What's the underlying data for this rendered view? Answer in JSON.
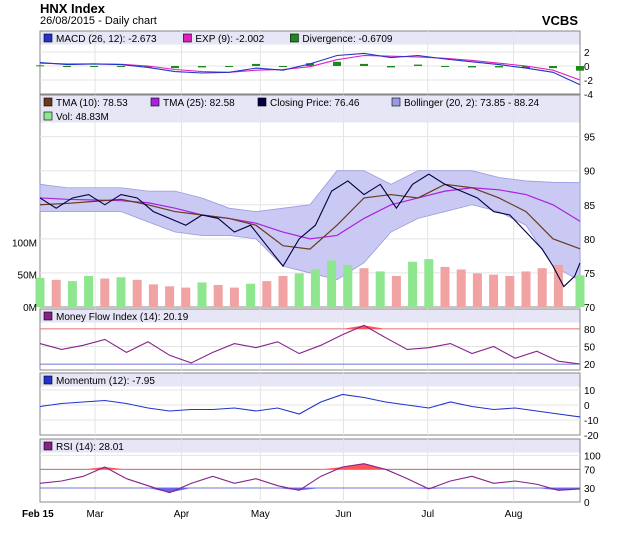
{
  "header": {
    "title": "HNX Index",
    "subtitle": "26/08/2015 - Daily chart",
    "brand": "VCBS"
  },
  "x_axis": {
    "ticks": [
      {
        "label": "Feb 15",
        "pos": 0.0
      },
      {
        "label": "Mar",
        "pos": 0.102
      },
      {
        "label": "Apr",
        "pos": 0.262
      },
      {
        "label": "May",
        "pos": 0.408
      },
      {
        "label": "Jun",
        "pos": 0.562
      },
      {
        "label": "Jul",
        "pos": 0.718
      },
      {
        "label": "Aug",
        "pos": 0.877
      }
    ]
  },
  "colors": {
    "price": "#000040",
    "tma10": "#6b3a1e",
    "tma25": "#aa22dd",
    "bollinger_fill": "#c9c9f4",
    "bollinger_edge": "#9a9ae0",
    "vol_up": "#8ee68e",
    "vol_down": "#f1a2a2",
    "macd": "#2233cc",
    "exp": "#dd22bb",
    "diverg": "#1e8a1e",
    "mfi": "#882288",
    "momentum": "#2233cc",
    "rsi": "#882288",
    "fill_red": "#ff5555",
    "fill_blue": "#6666ee",
    "band": "#e6e6f6"
  },
  "chart_data": [
    {
      "type": "line",
      "title": "MACD",
      "legend": [
        {
          "label": "MACD (26, 12): -2.673",
          "color": "#2233cc"
        },
        {
          "label": "EXP (9): -2.002",
          "color": "#dd22bb"
        },
        {
          "label": "Divergence: -0.6709",
          "color": "#1e8a1e"
        }
      ],
      "ylim": [
        -4,
        3
      ],
      "yticks": [
        "2",
        "0",
        "-2",
        "-4"
      ],
      "ytick_values": [
        2,
        0,
        -2,
        -4
      ],
      "series": [
        {
          "name": "MACD (26, 12)",
          "x": [
            0,
            0.05,
            0.1,
            0.15,
            0.2,
            0.25,
            0.3,
            0.35,
            0.4,
            0.45,
            0.5,
            0.55,
            0.6,
            0.65,
            0.7,
            0.75,
            0.8,
            0.85,
            0.9,
            0.95,
            1.0
          ],
          "values": [
            0.5,
            0.2,
            0.3,
            0.2,
            -0.2,
            -0.8,
            -1.0,
            -0.9,
            -0.3,
            -0.6,
            0.3,
            1.5,
            1.8,
            1.2,
            1.5,
            1.0,
            0.6,
            0.2,
            -0.3,
            -0.9,
            -2.673
          ]
        },
        {
          "name": "EXP (9)",
          "x": [
            0,
            0.05,
            0.1,
            0.15,
            0.2,
            0.25,
            0.3,
            0.35,
            0.4,
            0.45,
            0.5,
            0.55,
            0.6,
            0.65,
            0.7,
            0.75,
            0.8,
            0.85,
            0.9,
            0.95,
            1.0
          ],
          "values": [
            0.4,
            0.3,
            0.3,
            0.25,
            0.0,
            -0.5,
            -0.8,
            -0.9,
            -0.6,
            -0.5,
            -0.1,
            0.9,
            1.5,
            1.4,
            1.3,
            1.1,
            0.8,
            0.4,
            0.0,
            -0.6,
            -2.002
          ]
        },
        {
          "name": "Divergence",
          "type": "bar",
          "x": [
            0,
            0.05,
            0.1,
            0.15,
            0.2,
            0.25,
            0.3,
            0.35,
            0.4,
            0.45,
            0.5,
            0.55,
            0.6,
            0.65,
            0.7,
            0.75,
            0.8,
            0.85,
            0.9,
            0.95,
            1.0
          ],
          "values": [
            0.1,
            -0.1,
            0.0,
            -0.05,
            -0.2,
            -0.3,
            -0.2,
            0.0,
            0.3,
            -0.1,
            0.4,
            0.6,
            0.3,
            -0.2,
            0.2,
            -0.1,
            -0.2,
            -0.2,
            -0.3,
            -0.3,
            -0.67
          ]
        }
      ]
    },
    {
      "type": "line",
      "title": "Price",
      "legend": [
        {
          "label": "TMA (10): 78.53",
          "color": "#6b3a1e"
        },
        {
          "label": "TMA (25): 82.58",
          "color": "#aa22dd"
        },
        {
          "label": "Closing Price: 76.46",
          "color": "#000040"
        },
        {
          "label": "Bollinger (20, 2): 73.85 - 88.24",
          "color": "#9a9ae0"
        },
        {
          "label": "Vol: 48.83M",
          "color": "#8ee68e"
        }
      ],
      "ylim": [
        70,
        97
      ],
      "yticks": [
        "95",
        "90",
        "85",
        "80",
        "75",
        "70"
      ],
      "ytick_values": [
        95,
        90,
        85,
        80,
        75,
        70
      ],
      "volume_ylim": [
        0,
        150
      ],
      "volume_ticks": [
        "100M",
        "50M",
        "0M"
      ],
      "volume_tick_values": [
        100,
        50,
        0
      ],
      "series": [
        {
          "name": "Closing Price",
          "x": [
            0,
            0.03,
            0.06,
            0.09,
            0.12,
            0.15,
            0.18,
            0.21,
            0.24,
            0.27,
            0.3,
            0.33,
            0.36,
            0.39,
            0.42,
            0.45,
            0.48,
            0.51,
            0.54,
            0.57,
            0.6,
            0.63,
            0.66,
            0.69,
            0.72,
            0.75,
            0.78,
            0.81,
            0.84,
            0.87,
            0.9,
            0.93,
            0.95,
            0.97,
            0.99,
            1.0
          ],
          "values": [
            86,
            84.5,
            86,
            86.5,
            85,
            86.5,
            86,
            84,
            83,
            82,
            83.5,
            83,
            81,
            82,
            79,
            76,
            80,
            82,
            87,
            88.5,
            86.5,
            88,
            84.5,
            88,
            89.5,
            88,
            87,
            86,
            84,
            83.5,
            81,
            78.5,
            76,
            73,
            74.5,
            76.46
          ]
        },
        {
          "name": "TMA (10)",
          "x": [
            0,
            0.05,
            0.1,
            0.15,
            0.2,
            0.25,
            0.3,
            0.35,
            0.4,
            0.45,
            0.5,
            0.55,
            0.6,
            0.65,
            0.7,
            0.75,
            0.8,
            0.85,
            0.9,
            0.95,
            1.0
          ],
          "values": [
            85,
            85.2,
            85.5,
            85.8,
            85,
            84,
            83.5,
            83,
            82,
            79,
            78.5,
            82,
            86,
            86.5,
            86,
            88,
            87.5,
            86,
            84,
            80,
            78.53
          ]
        },
        {
          "name": "TMA (25)",
          "x": [
            0,
            0.05,
            0.1,
            0.15,
            0.2,
            0.25,
            0.3,
            0.35,
            0.4,
            0.45,
            0.5,
            0.55,
            0.6,
            0.65,
            0.7,
            0.75,
            0.8,
            0.85,
            0.9,
            0.95,
            1.0
          ],
          "values": [
            86,
            85.8,
            85.7,
            85.6,
            85.3,
            84.5,
            83.5,
            83,
            82.3,
            81,
            80,
            80.5,
            83,
            85,
            86,
            87,
            87.5,
            87.2,
            86.5,
            85,
            82.58
          ]
        },
        {
          "name": "Bollinger upper",
          "x": [
            0,
            0.05,
            0.1,
            0.15,
            0.2,
            0.25,
            0.3,
            0.35,
            0.4,
            0.45,
            0.5,
            0.55,
            0.6,
            0.65,
            0.7,
            0.75,
            0.8,
            0.85,
            0.9,
            0.95,
            1.0
          ],
          "values": [
            88,
            87.5,
            87.5,
            87.5,
            87,
            87,
            86,
            84.5,
            84,
            84.5,
            85,
            90,
            90,
            88,
            90,
            90,
            90,
            89,
            88.5,
            88.3,
            88.24
          ]
        },
        {
          "name": "Bollinger lower",
          "x": [
            0,
            0.05,
            0.1,
            0.15,
            0.2,
            0.25,
            0.3,
            0.35,
            0.4,
            0.45,
            0.5,
            0.55,
            0.6,
            0.65,
            0.7,
            0.75,
            0.8,
            0.85,
            0.9,
            0.95,
            1.0
          ],
          "values": [
            84,
            84,
            84,
            84,
            82.5,
            81,
            80.5,
            80.5,
            80,
            76,
            75,
            74,
            76.5,
            81,
            83,
            84,
            85,
            84,
            82,
            76,
            73.85
          ]
        },
        {
          "name": "Vol",
          "type": "bar",
          "x": [
            0,
            0.03,
            0.06,
            0.09,
            0.12,
            0.15,
            0.18,
            0.21,
            0.24,
            0.27,
            0.3,
            0.33,
            0.36,
            0.39,
            0.42,
            0.45,
            0.48,
            0.51,
            0.54,
            0.57,
            0.6,
            0.63,
            0.66,
            0.69,
            0.72,
            0.75,
            0.78,
            0.81,
            0.84,
            0.87,
            0.9,
            0.93,
            0.96,
            1.0
          ],
          "values": [
            45,
            42,
            40,
            48,
            44,
            46,
            42,
            35,
            32,
            30,
            38,
            34,
            30,
            36,
            40,
            48,
            52,
            58,
            72,
            65,
            60,
            55,
            48,
            70,
            74,
            62,
            58,
            52,
            50,
            48,
            55,
            60,
            65,
            48.83
          ],
          "up": [
            true,
            false,
            true,
            true,
            false,
            true,
            false,
            false,
            false,
            false,
            true,
            false,
            false,
            true,
            false,
            false,
            true,
            true,
            true,
            true,
            false,
            true,
            false,
            true,
            true,
            false,
            false,
            false,
            false,
            false,
            false,
            false,
            false,
            true
          ]
        }
      ]
    },
    {
      "type": "line",
      "title": "Money Flow Index",
      "legend": [
        {
          "label": "Money Flow Index (14): 20.19",
          "color": "#882288"
        }
      ],
      "ylim": [
        10,
        90
      ],
      "yticks": [
        "80",
        "50",
        "20"
      ],
      "ytick_values": [
        80,
        50,
        20
      ],
      "reference_lines": [
        80,
        20
      ],
      "series": [
        {
          "name": "Money Flow Index (14)",
          "x": [
            0,
            0.04,
            0.08,
            0.12,
            0.16,
            0.2,
            0.24,
            0.28,
            0.32,
            0.36,
            0.4,
            0.44,
            0.48,
            0.52,
            0.56,
            0.6,
            0.64,
            0.68,
            0.72,
            0.76,
            0.8,
            0.84,
            0.88,
            0.92,
            0.96,
            1.0
          ],
          "values": [
            55,
            45,
            52,
            62,
            40,
            58,
            35,
            22,
            40,
            55,
            48,
            58,
            38,
            52,
            70,
            86,
            65,
            45,
            48,
            55,
            38,
            50,
            30,
            42,
            25,
            20.19
          ]
        }
      ]
    },
    {
      "type": "line",
      "title": "Momentum",
      "legend": [
        {
          "label": "Momentum (12): -7.95",
          "color": "#2233cc"
        }
      ],
      "ylim": [
        -20,
        12
      ],
      "yticks": [
        "10",
        "0",
        "-10",
        "-20"
      ],
      "ytick_values": [
        10,
        0,
        -10,
        -20
      ],
      "series": [
        {
          "name": "Momentum (12)",
          "x": [
            0,
            0.04,
            0.08,
            0.12,
            0.16,
            0.2,
            0.24,
            0.28,
            0.32,
            0.36,
            0.4,
            0.44,
            0.48,
            0.52,
            0.56,
            0.6,
            0.64,
            0.68,
            0.72,
            0.76,
            0.8,
            0.84,
            0.88,
            0.92,
            0.96,
            1.0
          ],
          "values": [
            -1,
            1,
            2,
            3,
            1,
            -2,
            -4,
            -3,
            -3,
            -2,
            -4,
            -2,
            -6,
            2,
            7,
            5,
            2,
            0,
            -2,
            2,
            -1,
            -3,
            -2,
            -4,
            -6,
            -7.95
          ]
        }
      ]
    },
    {
      "type": "line",
      "title": "RSI",
      "legend": [
        {
          "label": "RSI (14): 28.01",
          "color": "#882288"
        }
      ],
      "ylim": [
        0,
        105
      ],
      "yticks": [
        "100",
        "70",
        "30",
        "0"
      ],
      "ytick_values": [
        100,
        70,
        30,
        0
      ],
      "reference_lines": [
        70,
        30
      ],
      "series": [
        {
          "name": "RSI (14)",
          "x": [
            0,
            0.04,
            0.08,
            0.12,
            0.16,
            0.2,
            0.24,
            0.28,
            0.32,
            0.36,
            0.4,
            0.44,
            0.48,
            0.52,
            0.56,
            0.6,
            0.64,
            0.68,
            0.72,
            0.76,
            0.8,
            0.84,
            0.88,
            0.92,
            0.96,
            1.0
          ],
          "values": [
            40,
            45,
            55,
            75,
            50,
            35,
            20,
            40,
            55,
            40,
            50,
            35,
            25,
            55,
            75,
            82,
            70,
            50,
            28,
            45,
            55,
            40,
            45,
            38,
            25,
            28.01
          ]
        }
      ]
    }
  ]
}
